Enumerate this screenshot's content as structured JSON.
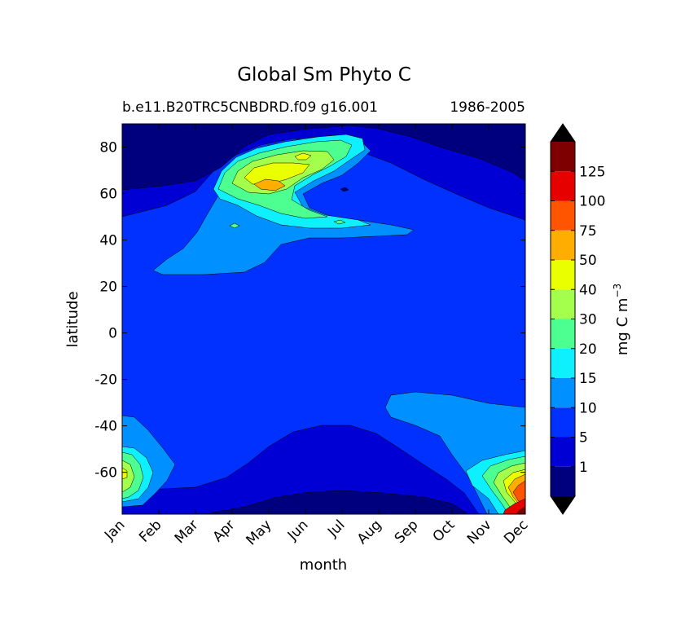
{
  "chart_data": {
    "type": "contour",
    "title": "Global Sm Phyto C",
    "subtitle_left": "b.e11.B20TRC5CNBDRD.f09 g16.001",
    "subtitle_right": "1986-2005",
    "xlabel": "month",
    "ylabel": "latitude",
    "x_ticks": [
      "Jan",
      "Feb",
      "Mar",
      "Apr",
      "May",
      "Jun",
      "Jul",
      "Aug",
      "Sep",
      "Oct",
      "Nov",
      "Dec"
    ],
    "y_ticks": [
      80,
      60,
      40,
      20,
      0,
      -20,
      -40,
      -60
    ],
    "ylim": [
      -78,
      90
    ],
    "colorbar": {
      "label": "mg C m",
      "label_sup": "−3",
      "levels": [
        1,
        5,
        10,
        15,
        20,
        30,
        40,
        50,
        75,
        100,
        125
      ],
      "tick_labels": [
        "1",
        "5",
        "10",
        "15",
        "20",
        "30",
        "40",
        "50",
        "75",
        "100",
        "125"
      ],
      "colors": [
        "#00007f",
        "#0000d5",
        "#0031ff",
        "#0090ff",
        "#0ff0ff",
        "#4cff90",
        "#a3ff4c",
        "#eaff00",
        "#ffae00",
        "#ff5500",
        "#e70000",
        "#7f0000"
      ],
      "extend": "both",
      "over_color": "#000000",
      "under_color": "#000000"
    }
  }
}
